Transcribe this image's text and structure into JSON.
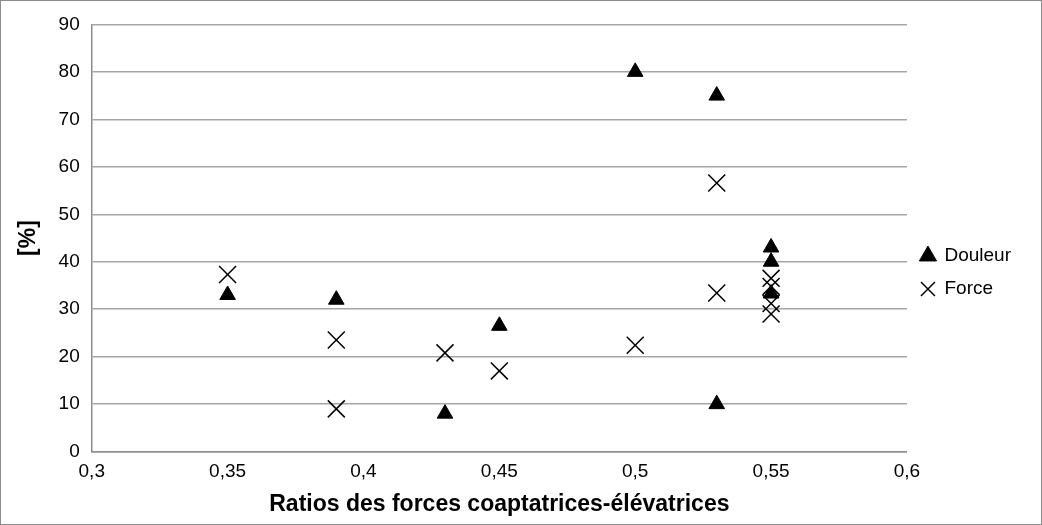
{
  "chart_data": {
    "type": "scatter",
    "xlabel": "Ratios des forces coaptatrices-élévatrices",
    "ylabel": "[%]",
    "series": [
      {
        "name": "Douleur",
        "color": "#000000",
        "marker": "triangle",
        "x": [
          0.35,
          0.39,
          0.43,
          0.45,
          0.5,
          0.53,
          0.53,
          0.55,
          0.55,
          0.55
        ],
        "values": [
          33,
          32,
          8,
          26.5,
          80,
          75,
          10,
          43,
          40,
          33.3
        ]
      },
      {
        "name": "Force",
        "color": "#000000",
        "marker": "cross",
        "x": [
          0.35,
          0.39,
          0.39,
          0.43,
          0.45,
          0.5,
          0.53,
          0.53,
          0.55,
          0.55,
          0.55,
          0.55
        ],
        "values": [
          37.3,
          23.5,
          9,
          20.8,
          17,
          22.4,
          56.6,
          33.4,
          36.5,
          34.8,
          31.2,
          29
        ]
      }
    ],
    "xlim": [
      0.3,
      0.6
    ],
    "xticks": [
      {
        "value": 0.3,
        "label": "0,3"
      },
      {
        "value": 0.35,
        "label": "0,35"
      },
      {
        "value": 0.4,
        "label": "0,4"
      },
      {
        "value": 0.45,
        "label": "0,45"
      },
      {
        "value": 0.5,
        "label": "0,5"
      },
      {
        "value": 0.55,
        "label": "0,55"
      },
      {
        "value": 0.6,
        "label": "0,6"
      }
    ],
    "ylim": [
      0,
      90
    ],
    "yticks": [
      0,
      10,
      20,
      30,
      40,
      50,
      60,
      70,
      80,
      90
    ],
    "grid": "y",
    "legend": "right"
  }
}
